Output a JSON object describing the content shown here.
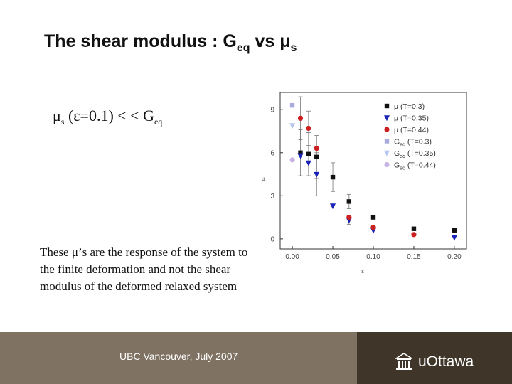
{
  "slide": {
    "title_main": "The shear modulus : G",
    "title_sub": "eq",
    "title_tail": " vs μ",
    "title_tail_sub": "s",
    "statement_mu": "μ",
    "statement_mu_sub": "s",
    "statement_mid": " (ε=0.1) < < G",
    "statement_tail_sub": "eq",
    "note": "These μ’s are the response of the system to the finite deformation and not the shear modulus of the deformed relaxed system",
    "footer_text": "UBC Vancouver, July 2007",
    "logo_text": "uOttawa"
  },
  "colors": {
    "footer_left": "#7f7262",
    "footer_right": "#3f3529",
    "black_marker": "#111111",
    "blue_marker": "#1a22b8",
    "red_marker": "#cc1f1f",
    "light_blue_square": "#a9abdc",
    "light_blue_triangle": "#b7c8ee",
    "light_purple_circle": "#c8b4e2"
  },
  "chart_data": {
    "type": "scatter",
    "xlabel": "ε",
    "ylabel": "μ",
    "xlim": [
      -0.015,
      0.215
    ],
    "ylim": [
      -0.7,
      10.2
    ],
    "xticks": [
      "0.00",
      "0.05",
      "0.10",
      "0.15",
      "0.20"
    ],
    "xtick_values": [
      0.0,
      0.05,
      0.1,
      0.15,
      0.2
    ],
    "yticks": [
      "0",
      "3",
      "6",
      "9"
    ],
    "ytick_values": [
      0,
      3,
      6,
      9
    ],
    "legend_position": "top-right",
    "series": [
      {
        "label": "μ",
        "label_sub": "",
        "label_tail": " (T=0.3)",
        "marker": "square",
        "color": "#111111",
        "x": [
          0.01,
          0.02,
          0.03,
          0.05,
          0.07,
          0.1,
          0.15,
          0.2
        ],
        "y": [
          6.0,
          5.9,
          5.7,
          4.3,
          2.6,
          1.5,
          0.7,
          0.6
        ],
        "err": [
          1.6,
          1.5,
          1.5,
          1.0,
          0.5,
          0,
          0,
          0
        ]
      },
      {
        "label": "μ",
        "label_sub": "",
        "label_tail": " (T=0.35)",
        "marker": "triangle-down",
        "color": "#1a22b8",
        "x": [
          0.01,
          0.02,
          0.03,
          0.05,
          0.07,
          0.1,
          0.2
        ],
        "y": [
          5.8,
          5.3,
          4.5,
          2.3,
          1.3,
          0.6,
          0.1
        ],
        "err": [
          0,
          0,
          1.5,
          0,
          0.3,
          0,
          0
        ]
      },
      {
        "label": "μ",
        "label_sub": "",
        "label_tail": " (T=0.44)",
        "marker": "circle",
        "color": "#cc1f1f",
        "x": [
          0.01,
          0.02,
          0.03,
          0.07,
          0.1,
          0.15
        ],
        "y": [
          8.4,
          7.7,
          6.3,
          1.5,
          0.8,
          0.3
        ],
        "err": [
          1.5,
          1.2,
          0,
          0,
          0,
          0
        ]
      },
      {
        "label": "G",
        "label_sub": "eq",
        "label_tail": " (T=0.3)",
        "marker": "square",
        "color": "#a9abdc",
        "x": [
          0.0
        ],
        "y": [
          9.3
        ],
        "err": [
          0
        ]
      },
      {
        "label": "G",
        "label_sub": "eq",
        "label_tail": " (T=0.35)",
        "marker": "triangle-down",
        "color": "#b7c8ee",
        "x": [
          0.0
        ],
        "y": [
          7.9
        ],
        "err": [
          0
        ]
      },
      {
        "label": "G",
        "label_sub": "eq",
        "label_tail": " (T=0.44)",
        "marker": "circle",
        "color": "#c8b4e2",
        "x": [
          0.0
        ],
        "y": [
          5.5
        ],
        "err": [
          0
        ]
      }
    ]
  }
}
